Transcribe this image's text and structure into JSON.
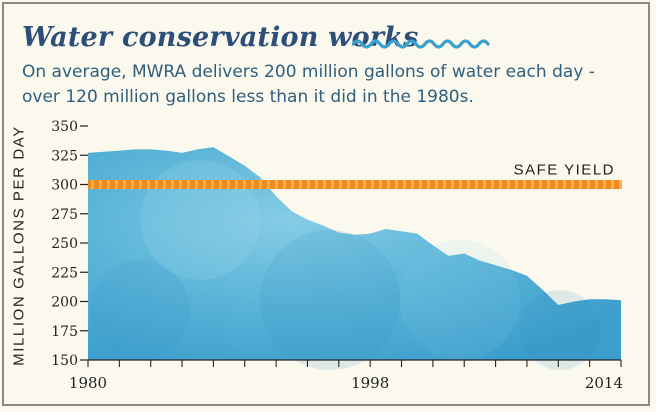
{
  "title": "Water conservation works",
  "subtitle": "On average, MWRA delivers 200 million gallons of water each day - over 120 million gallons less than it did in the 1980s.",
  "colors": {
    "title": "#2c4e78",
    "subtitle": "#2f5f7d",
    "area": "#5ab3d6",
    "safe_yield_line": "#f08a1e",
    "background": "#fbf9ee"
  },
  "icons": {
    "title_decoration": "wave-icon"
  },
  "chart_data": {
    "type": "area",
    "ylabel": "MILLION GALLONS PER DAY",
    "xlabel": "",
    "xlim": [
      1980,
      2014
    ],
    "ylim": [
      150,
      350
    ],
    "x_ticks": [
      "1980",
      "1998",
      "2014"
    ],
    "y_ticks": [
      350,
      325,
      300,
      275,
      250,
      225,
      200,
      175,
      150
    ],
    "grid": false,
    "series": [
      {
        "x": [
          1980,
          1981,
          1982,
          1983,
          1984,
          1985,
          1986,
          1987,
          1988,
          1989,
          1990,
          1991,
          1992,
          1993,
          1994,
          1995,
          1996,
          1997,
          1998,
          1999,
          2000,
          2001,
          2002,
          2003,
          2004,
          2005,
          2006,
          2007,
          2008,
          2009,
          2010,
          2011,
          2012,
          2013,
          2014
        ],
        "values": [
          327,
          328,
          329,
          330,
          330,
          329,
          327,
          330,
          332,
          324,
          316,
          306,
          290,
          277,
          270,
          265,
          259,
          257,
          258,
          262,
          260,
          258,
          248,
          239,
          241,
          235,
          231,
          227,
          222,
          210,
          197,
          200,
          202,
          202,
          201
        ]
      }
    ],
    "reference_lines": [
      {
        "label": "SAFE YIELD",
        "value": 300
      }
    ]
  }
}
